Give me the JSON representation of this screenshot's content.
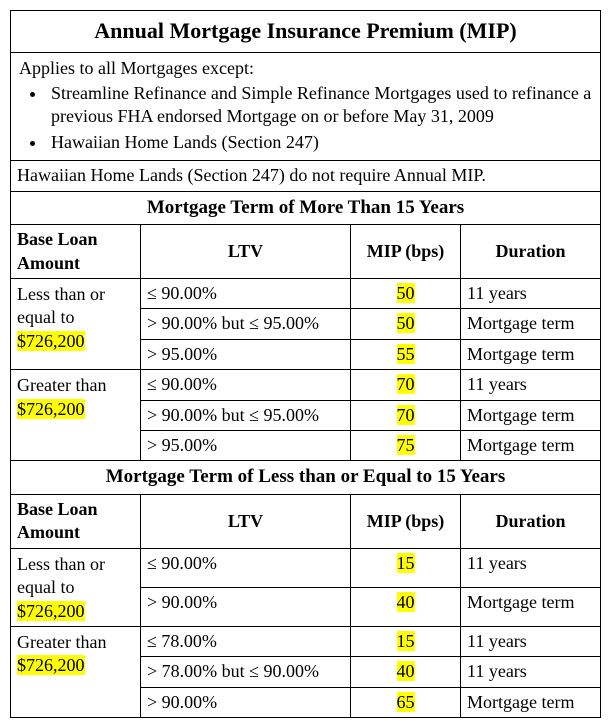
{
  "title": "Annual Mortgage Insurance Premium (MIP)",
  "applies_intro": "Applies to all Mortgages except:",
  "exceptions": [
    "Streamline Refinance and Simple Refinance Mortgages used to refinance a previous FHA endorsed Mortgage on or before May 31, 2009",
    "Hawaiian Home Lands (Section 247)"
  ],
  "note": "Hawaiian Home Lands (Section 247) do not require Annual MIP.",
  "threshold": "$726,200",
  "highlight_color": "#ffff00",
  "columns": {
    "loan": "Base Loan Amount",
    "ltv": "LTV",
    "mip": "MIP (bps)",
    "duration": "Duration"
  },
  "col_widths": {
    "loan": 130,
    "ltv": 210,
    "mip": 110,
    "duration": 140
  },
  "sections": [
    {
      "header": "Mortgage Term of More Than 15 Years",
      "groups": [
        {
          "loan_prefix": "Less than or equal to ",
          "rows": [
            {
              "ltv": "≤ 90.00%",
              "mip": "50",
              "duration": "11 years"
            },
            {
              "ltv": "> 90.00% but ≤ 95.00%",
              "mip": "50",
              "duration": "Mortgage term"
            },
            {
              "ltv": "> 95.00%",
              "mip": "55",
              "duration": "Mortgage term"
            }
          ]
        },
        {
          "loan_prefix": "Greater than ",
          "rows": [
            {
              "ltv": "≤ 90.00%",
              "mip": "70",
              "duration": "11 years"
            },
            {
              "ltv": "> 90.00% but ≤ 95.00%",
              "mip": "70",
              "duration": "Mortgage term"
            },
            {
              "ltv": "> 95.00%",
              "mip": "75",
              "duration": "Mortgage term"
            }
          ]
        }
      ]
    },
    {
      "header": "Mortgage Term of Less than or Equal to 15 Years",
      "groups": [
        {
          "loan_prefix": "Less than or equal to ",
          "rows": [
            {
              "ltv": "≤ 90.00%",
              "mip": "15",
              "duration": "11 years"
            },
            {
              "ltv": "> 90.00%",
              "mip": "40",
              "duration": "Mortgage term"
            }
          ]
        },
        {
          "loan_prefix": "Greater than ",
          "rows": [
            {
              "ltv": "≤ 78.00%",
              "mip": "15",
              "duration": "11 years"
            },
            {
              "ltv": "> 78.00% but ≤ 90.00%",
              "mip": "40",
              "duration": "11 years"
            },
            {
              "ltv": "> 90.00%",
              "mip": "65",
              "duration": "Mortgage term"
            }
          ]
        }
      ]
    }
  ]
}
